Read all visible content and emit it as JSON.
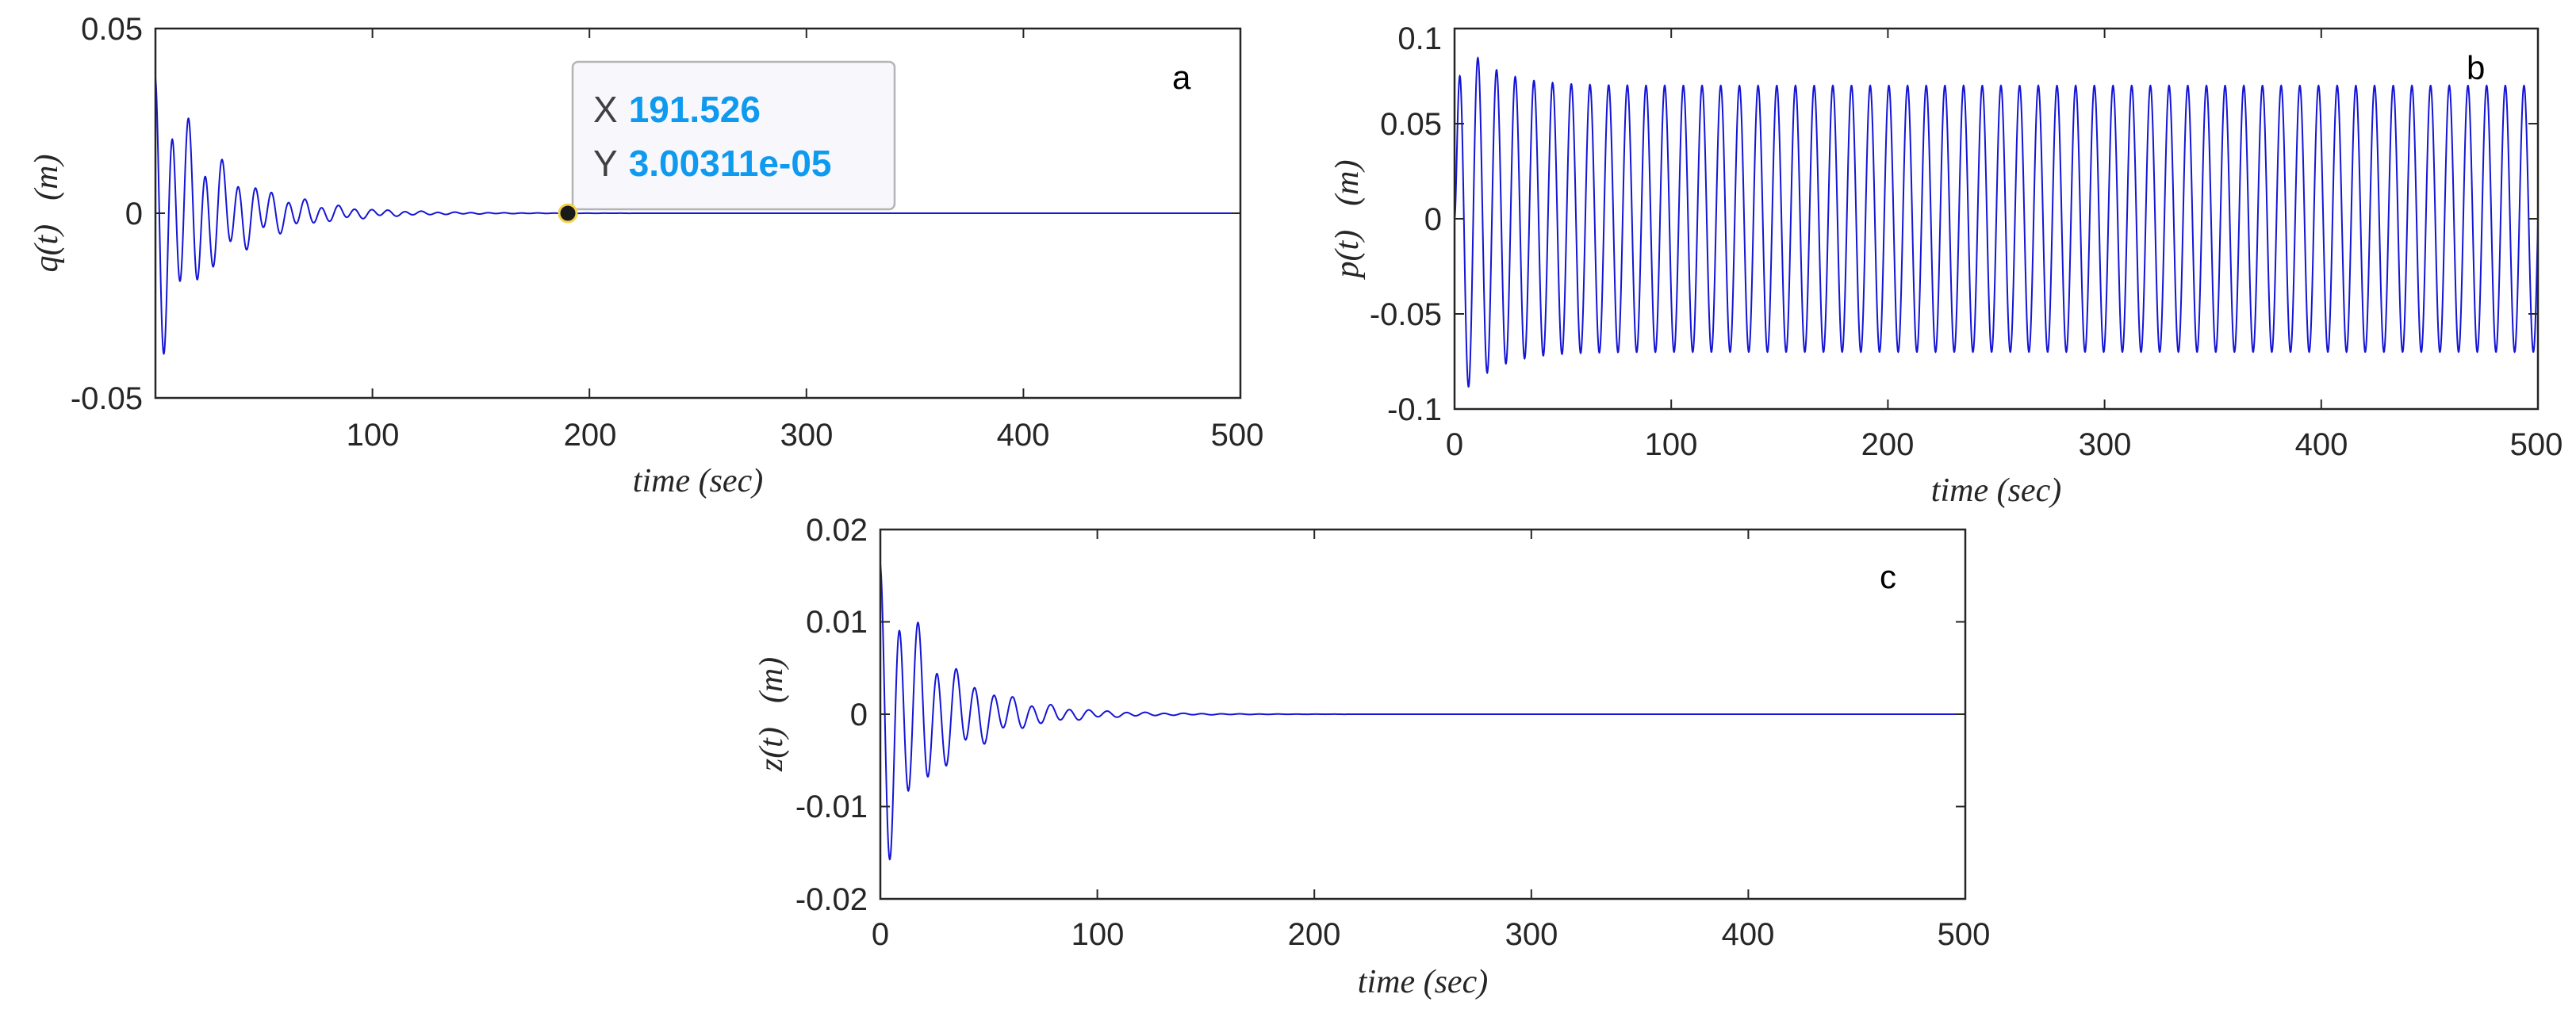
{
  "colors": {
    "series": "#1515d6",
    "axis": "#262626",
    "datatip_value": "#0e9aee"
  },
  "chart_data": [
    {
      "type": "line",
      "panel_label": "a",
      "title": "",
      "xlabel": "time (sec)",
      "ylabel": {
        "var": "q(t)",
        "unit": "(m)"
      },
      "xlim": [
        0,
        500
      ],
      "ylim": [
        -0.05,
        0.05
      ],
      "xticks": [
        100,
        200,
        300,
        400,
        500
      ],
      "xtick_labels": [
        "100",
        "200",
        "300",
        "400",
        "500"
      ],
      "yticks": [
        -0.05,
        0,
        0.05
      ],
      "ytick_labels": [
        "-0.05",
        "0",
        "0.05"
      ],
      "series": [
        {
          "name": "q(t)",
          "model": "decaying",
          "A0": 0.045,
          "tau": 28,
          "omega": 0.82,
          "omega2": 0.35,
          "mix": 0.25
        }
      ],
      "datatip": {
        "x_label": "X",
        "x_value": "191.526",
        "y_label": "Y",
        "y_value": "3.00311e-05",
        "x": 191.526,
        "y": 3.00311e-05
      }
    },
    {
      "type": "line",
      "panel_label": "b",
      "title": "",
      "xlabel": "time (sec)",
      "ylabel": {
        "var": "p(t)",
        "unit": "(m)"
      },
      "xlim": [
        0,
        500
      ],
      "ylim": [
        -0.1,
        0.1
      ],
      "xticks": [
        0,
        100,
        200,
        300,
        400,
        500
      ],
      "xtick_labels": [
        "0",
        "100",
        "200",
        "300",
        "400",
        "500"
      ],
      "yticks": [
        -0.1,
        -0.05,
        0,
        0.05,
        0.1
      ],
      "ytick_labels": [
        "-0.1",
        "-0.05",
        "0",
        "0.05",
        "0.1"
      ],
      "series": [
        {
          "name": "p(t)",
          "model": "limit_cycle",
          "A_ss": 0.07,
          "A_tr": 0.1,
          "tau": 15,
          "omega": 0.7288
        }
      ]
    },
    {
      "type": "line",
      "panel_label": "c",
      "title": "",
      "xlabel": "time (sec)",
      "ylabel": {
        "var": "z(t)",
        "unit": "(m)"
      },
      "xlim": [
        0,
        500
      ],
      "ylim": [
        -0.02,
        0.02
      ],
      "xticks": [
        0,
        100,
        200,
        300,
        400,
        500
      ],
      "xtick_labels": [
        "0",
        "100",
        "200",
        "300",
        "400",
        "500"
      ],
      "yticks": [
        -0.02,
        -0.01,
        0,
        0.01,
        0.02
      ],
      "ytick_labels": [
        "-0.02",
        "-0.01",
        "0",
        "0.01",
        "0.02"
      ],
      "series": [
        {
          "name": "z(t)",
          "model": "decaying",
          "A0": 0.019,
          "tau": 27,
          "omega": 0.72,
          "omega2": 0.3,
          "mix": 0.2
        }
      ]
    }
  ]
}
